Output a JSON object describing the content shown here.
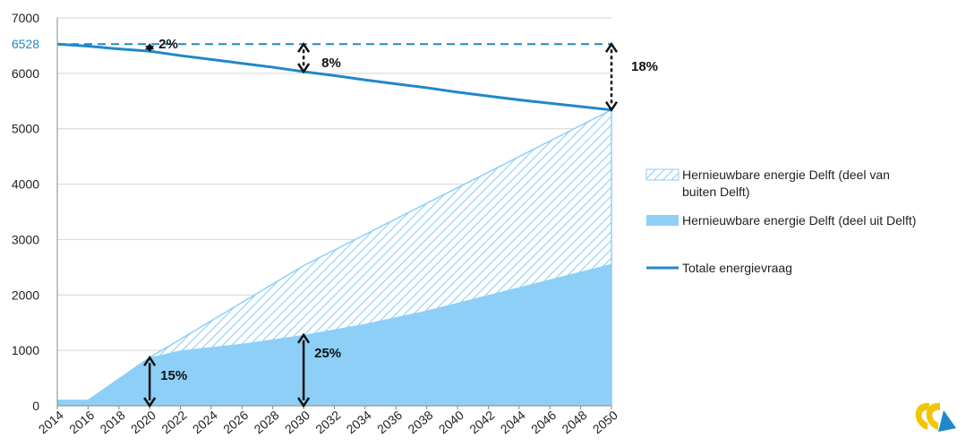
{
  "chart_data": {
    "type": "area",
    "x": [
      2014,
      2015,
      2016,
      2020,
      2030,
      2050
    ],
    "x_ticks": [
      "2014",
      "2016",
      "2018",
      "2020",
      "2022",
      "2024",
      "2026",
      "2028",
      "2030",
      "2032",
      "2034",
      "2036",
      "2038",
      "2040",
      "2042",
      "2044",
      "2046",
      "2048",
      "2050"
    ],
    "ylim": [
      0,
      7000
    ],
    "y_ticks": [
      "0",
      "1000",
      "2000",
      "3000",
      "4000",
      "5000",
      "6000",
      "7000"
    ],
    "reference_line": {
      "value": 6528,
      "label": "6528",
      "color": "#1f88c9",
      "style": "dashed"
    },
    "series": [
      {
        "name": "Totale energievraag",
        "type": "line",
        "color": "#1f88c9",
        "points": [
          [
            2014,
            6528
          ],
          [
            2016,
            6490
          ],
          [
            2018,
            6440
          ],
          [
            2020,
            6400
          ],
          [
            2022,
            6320
          ],
          [
            2024,
            6250
          ],
          [
            2026,
            6180
          ],
          [
            2028,
            6110
          ],
          [
            2030,
            6030
          ],
          [
            2032,
            5960
          ],
          [
            2034,
            5880
          ],
          [
            2036,
            5810
          ],
          [
            2038,
            5740
          ],
          [
            2040,
            5660
          ],
          [
            2042,
            5590
          ],
          [
            2044,
            5520
          ],
          [
            2046,
            5460
          ],
          [
            2048,
            5400
          ],
          [
            2050,
            5340
          ]
        ]
      },
      {
        "name": "Hernieuwbare energie Delft (deel uit Delft)",
        "type": "area",
        "color": "#8ecff7",
        "points": [
          [
            2014,
            100
          ],
          [
            2015,
            100
          ],
          [
            2016,
            100
          ],
          [
            2020,
            870
          ],
          [
            2022,
            1000
          ],
          [
            2026,
            1120
          ],
          [
            2030,
            1280
          ],
          [
            2034,
            1480
          ],
          [
            2038,
            1720
          ],
          [
            2042,
            2000
          ],
          [
            2046,
            2280
          ],
          [
            2050,
            2560
          ]
        ]
      },
      {
        "name": "Hernieuwbare energie Delft (deel van buiten Delft)",
        "type": "area-hatched",
        "color": "#8ecff7",
        "points": [
          [
            2014,
            100
          ],
          [
            2015,
            100
          ],
          [
            2016,
            100
          ],
          [
            2020,
            870
          ],
          [
            2030,
            2530
          ],
          [
            2050,
            5340
          ]
        ]
      }
    ],
    "annotations": [
      {
        "text": "2%",
        "x": 2020,
        "y_from": 6400,
        "y_to": 6528
      },
      {
        "text": "8%",
        "x": 2030,
        "y_from": 6030,
        "y_to": 6528
      },
      {
        "text": "18%",
        "x": 2050,
        "y_from": 5340,
        "y_to": 6528
      },
      {
        "text": "15%",
        "x": 2020,
        "y_from": 0,
        "y_to": 870
      },
      {
        "text": "25%",
        "x": 2030,
        "y_from": 0,
        "y_to": 1280
      }
    ],
    "legend": {
      "placement": "right",
      "items": [
        {
          "line1": "Hernieuwbare energie Delft (deel van",
          "line2": "buiten Delft)",
          "kind": "hatched"
        },
        {
          "line1": "Hernieuwbare energie Delft (deel uit Delft)",
          "line2": "",
          "kind": "solid"
        },
        {
          "line1": "Totale energievraag",
          "line2": "",
          "kind": "line"
        }
      ]
    },
    "grid": "horizontal",
    "title": "",
    "xlabel": "",
    "ylabel": ""
  },
  "logo": {
    "icon": "delft-energy-logo-icon",
    "colors": [
      "#f2c500",
      "#1f88c9"
    ]
  }
}
